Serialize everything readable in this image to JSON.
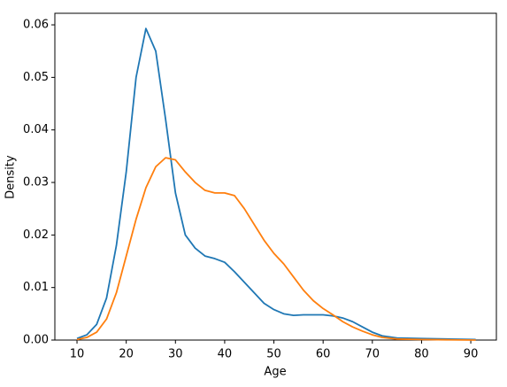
{
  "chart_data": {
    "type": "line",
    "xlabel": "Age",
    "ylabel": "Density",
    "x": [
      10,
      12,
      14,
      16,
      18,
      20,
      22,
      24,
      26,
      28,
      30,
      32,
      34,
      36,
      38,
      40,
      42,
      44,
      46,
      48,
      50,
      52,
      54,
      56,
      58,
      60,
      62,
      64,
      66,
      68,
      70,
      72,
      75,
      80,
      85,
      91
    ],
    "series": [
      {
        "color": "#1f77b4",
        "values": [
          0.0003,
          0.001,
          0.003,
          0.008,
          0.018,
          0.032,
          0.05,
          0.0593,
          0.055,
          0.042,
          0.028,
          0.02,
          0.0175,
          0.016,
          0.0155,
          0.0148,
          0.013,
          0.011,
          0.009,
          0.007,
          0.0058,
          0.005,
          0.0047,
          0.0048,
          0.0048,
          0.0048,
          0.0046,
          0.0042,
          0.0035,
          0.0025,
          0.0015,
          0.0008,
          0.0004,
          0.0003,
          0.0002,
          0.0001
        ]
      },
      {
        "color": "#ff7f0e",
        "values": [
          0.0001,
          0.0005,
          0.0015,
          0.004,
          0.009,
          0.016,
          0.023,
          0.029,
          0.033,
          0.0347,
          0.0343,
          0.032,
          0.03,
          0.0285,
          0.028,
          0.028,
          0.0275,
          0.025,
          0.022,
          0.019,
          0.0165,
          0.0145,
          0.012,
          0.0095,
          0.0075,
          0.006,
          0.0048,
          0.0035,
          0.0025,
          0.0017,
          0.001,
          0.0005,
          0.0002,
          0.0001,
          5e-05,
          0
        ]
      }
    ],
    "xlim": [
      5.5,
      95.2
    ],
    "ylim": [
      0,
      0.0622
    ],
    "xticks": [
      10,
      20,
      30,
      40,
      50,
      60,
      70,
      80,
      90
    ],
    "yticks": [
      {
        "value": 0,
        "label": "0.00"
      },
      {
        "value": 0.01,
        "label": "0.01"
      },
      {
        "value": 0.02,
        "label": "0.02"
      },
      {
        "value": 0.03,
        "label": "0.03"
      },
      {
        "value": 0.04,
        "label": "0.04"
      },
      {
        "value": 0.05,
        "label": "0.05"
      },
      {
        "value": 0.06,
        "label": "0.06"
      }
    ]
  }
}
